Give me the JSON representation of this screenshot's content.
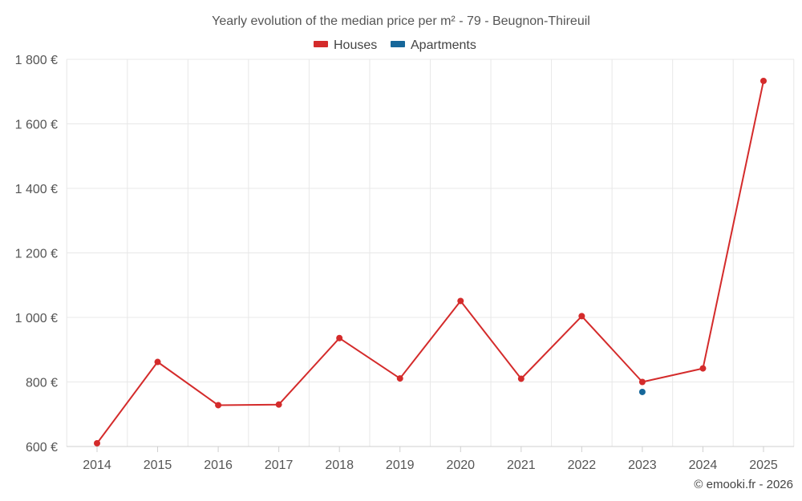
{
  "chart_data": {
    "type": "line",
    "title": "Yearly evolution of the median price per m² - 79 - Beugnon-Thireuil",
    "categories": [
      "2014",
      "2015",
      "2016",
      "2017",
      "2018",
      "2019",
      "2020",
      "2021",
      "2022",
      "2023",
      "2024",
      "2025"
    ],
    "series": [
      {
        "name": "Houses",
        "color": "#d42b2b",
        "values": [
          610,
          862,
          728,
          730,
          936,
          811,
          1051,
          810,
          1004,
          800,
          842,
          1733
        ]
      },
      {
        "name": "Apartments",
        "color": "#16679a",
        "values": [
          null,
          null,
          null,
          null,
          null,
          null,
          null,
          null,
          null,
          769,
          null,
          null
        ]
      }
    ],
    "ylim": [
      600,
      1800
    ],
    "yticks": [
      600,
      800,
      1000,
      1200,
      1400,
      1600,
      1800
    ],
    "ytick_labels": [
      "600 €",
      "800 €",
      "1 000 €",
      "1 200 €",
      "1 400 €",
      "1 600 €",
      "1 800 €"
    ],
    "grid": true,
    "legend_position": "top-center",
    "xlabel": "",
    "ylabel": ""
  },
  "credit": "© emooki.fr - 2026"
}
